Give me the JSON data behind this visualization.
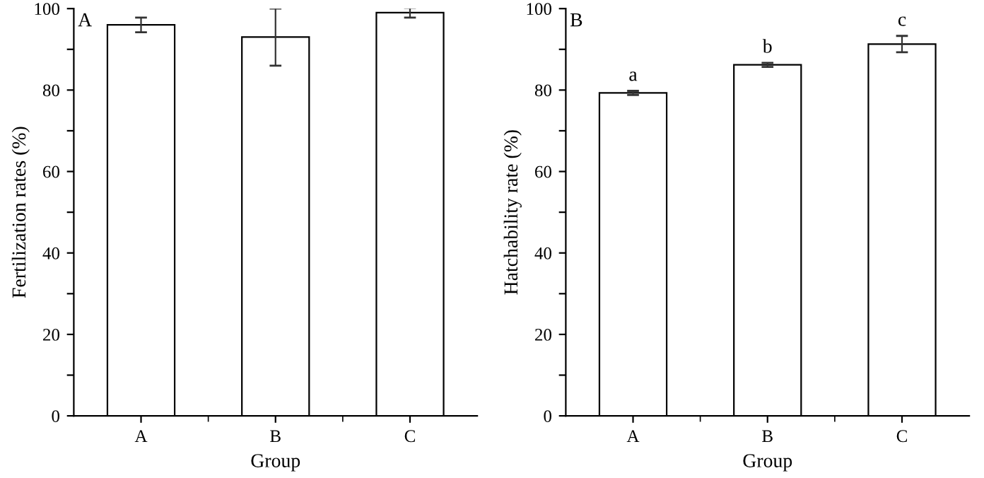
{
  "chart_data": [
    {
      "type": "bar",
      "categories": [
        "A",
        "B",
        "C"
      ],
      "values": [
        96,
        93,
        99
      ],
      "errors": [
        1.8,
        7,
        1.2
      ],
      "color": "#ffffff",
      "xlabel": "Group",
      "ylabel": "Fertilization rates (%)",
      "ylim": [
        0,
        100
      ],
      "yticks": [
        0,
        {
          "value": 10,
          "label": null
        },
        20,
        {
          "value": 30,
          "label": null
        },
        40,
        {
          "value": 50,
          "label": null
        },
        60,
        {
          "value": 70,
          "label": null
        },
        80,
        {
          "value": 90,
          "label": null
        },
        100
      ],
      "annotations": [
        "A"
      ],
      "grid": false
    },
    {
      "type": "bar",
      "categories": [
        "A",
        "B",
        "C"
      ],
      "values": [
        79.3,
        86.2,
        91.3
      ],
      "errors": [
        0.5,
        0.5,
        2
      ],
      "color": "#ffffff",
      "xlabel": "Group",
      "ylabel": "Hatchability rate (%)",
      "ylim": [
        0,
        100
      ],
      "yticks": [
        0,
        {
          "value": 10,
          "label": null
        },
        20,
        {
          "value": 30,
          "label": null
        },
        40,
        {
          "value": 50,
          "label": null
        },
        60,
        {
          "value": 70,
          "label": null
        },
        80,
        {
          "value": 90,
          "label": null
        },
        100
      ],
      "annotations": [
        "B",
        "a",
        "b",
        "c"
      ],
      "grid": false
    }
  ]
}
